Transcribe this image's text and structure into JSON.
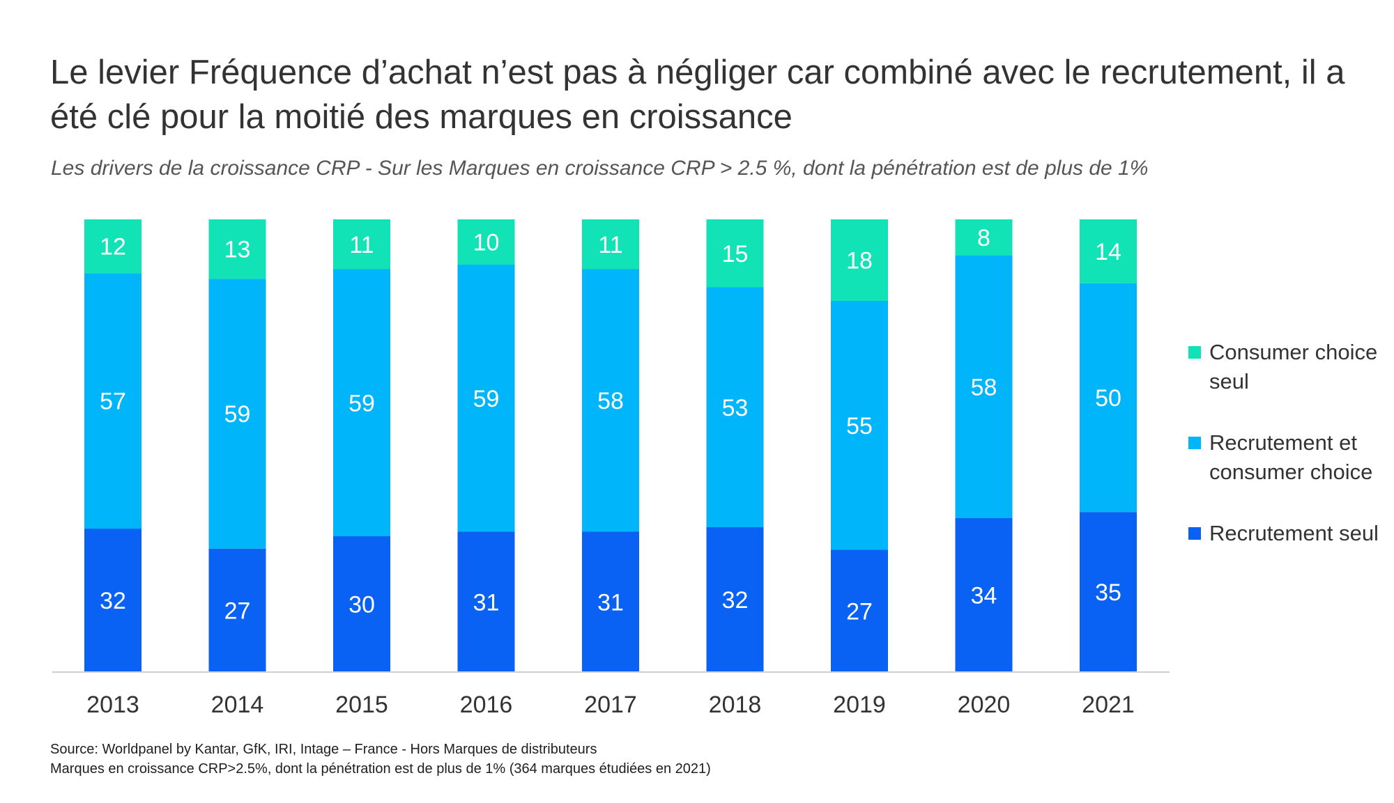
{
  "title": "Le levier Fréquence d’achat n’est pas à négliger car combiné avec le recrutement, il a été clé pour la moitié des marques en croissance",
  "subtitle": "Les drivers de la croissance CRP - Sur les Marques en croissance CRP > 2.5 %, dont la pénétration est de plus de 1%",
  "footnotes": {
    "source": "Source: Worldpanel by Kantar, GfK, IRI, Intage – France - Hors Marques de distributeurs",
    "note": "Marques en croissance CRP>2.5%, dont la pénétration est de plus de 1% (364 marques étudiées en 2021)"
  },
  "colors": {
    "consumer_choice_seul": "#12E3B7",
    "recrutement_et_consumer_choice": "#00B5FA",
    "recrutement_seul": "#0A62F5",
    "axis": "#cfcfcf"
  },
  "chart_data": {
    "type": "bar",
    "stacked": true,
    "percent_stacked": true,
    "categories": [
      "2013",
      "2014",
      "2015",
      "2016",
      "2017",
      "2018",
      "2019",
      "2020",
      "2021"
    ],
    "series": [
      {
        "name": "Recrutement seul",
        "color": "#0A62F5",
        "values": [
          32,
          27,
          30,
          31,
          31,
          32,
          27,
          34,
          35
        ]
      },
      {
        "name": "Recrutement et consumer choice",
        "color": "#00B5FA",
        "values": [
          57,
          59,
          59,
          59,
          58,
          53,
          55,
          58,
          50
        ]
      },
      {
        "name": "Consumer choice seul",
        "color": "#12E3B7",
        "values": [
          12,
          13,
          11,
          10,
          11,
          15,
          18,
          8,
          14
        ]
      }
    ],
    "legend_order": [
      "Consumer choice seul",
      "Recrutement et consumer choice",
      "Recrutement seul"
    ],
    "legend_position": "right",
    "data_labels": true,
    "grid": false
  }
}
